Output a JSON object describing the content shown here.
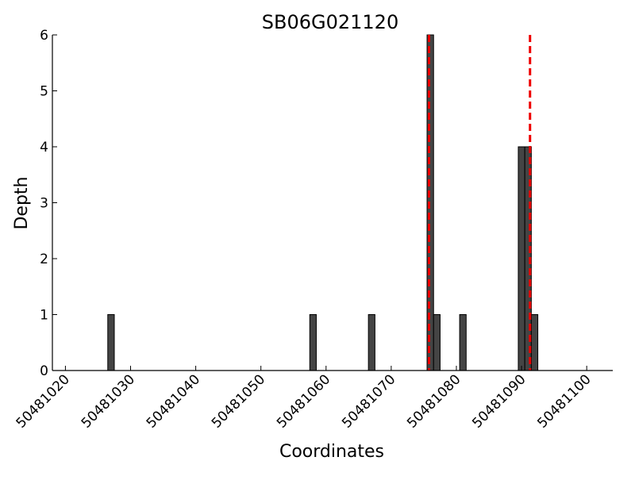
{
  "chart_data": {
    "type": "bar",
    "title": "SB06G021120",
    "xlabel": "Coordinates",
    "ylabel": "Depth",
    "xlim": [
      50481018,
      50481104
    ],
    "ylim": [
      0,
      6
    ],
    "xticks": [
      50481020,
      50481030,
      50481040,
      50481050,
      50481060,
      50481070,
      50481080,
      50481090,
      50481100
    ],
    "xtick_labels": [
      "50481020",
      "50481030",
      "50481040",
      "50481050",
      "50481060",
      "50481070",
      "50481080",
      "50481090",
      "50481100"
    ],
    "yticks": [
      0,
      1,
      2,
      3,
      4,
      5,
      6
    ],
    "ytick_labels": [
      "0",
      "1",
      "2",
      "3",
      "4",
      "5",
      "6"
    ],
    "bar_width": 1,
    "bar_color": "#444444",
    "bars": [
      {
        "x": 50481027,
        "value": 1
      },
      {
        "x": 50481058,
        "value": 1
      },
      {
        "x": 50481067,
        "value": 1
      },
      {
        "x": 50481076,
        "value": 6
      },
      {
        "x": 50481077,
        "value": 1
      },
      {
        "x": 50481081,
        "value": 1
      },
      {
        "x": 50481090,
        "value": 4
      },
      {
        "x": 50481091,
        "value": 4
      },
      {
        "x": 50481092,
        "value": 1
      }
    ],
    "reference_lines": [
      {
        "x": 50481075.8,
        "color": "#ee0000",
        "style": "dashed"
      },
      {
        "x": 50481091.3,
        "color": "#ee0000",
        "style": "dashed"
      }
    ],
    "grid": false,
    "legend": "none"
  }
}
